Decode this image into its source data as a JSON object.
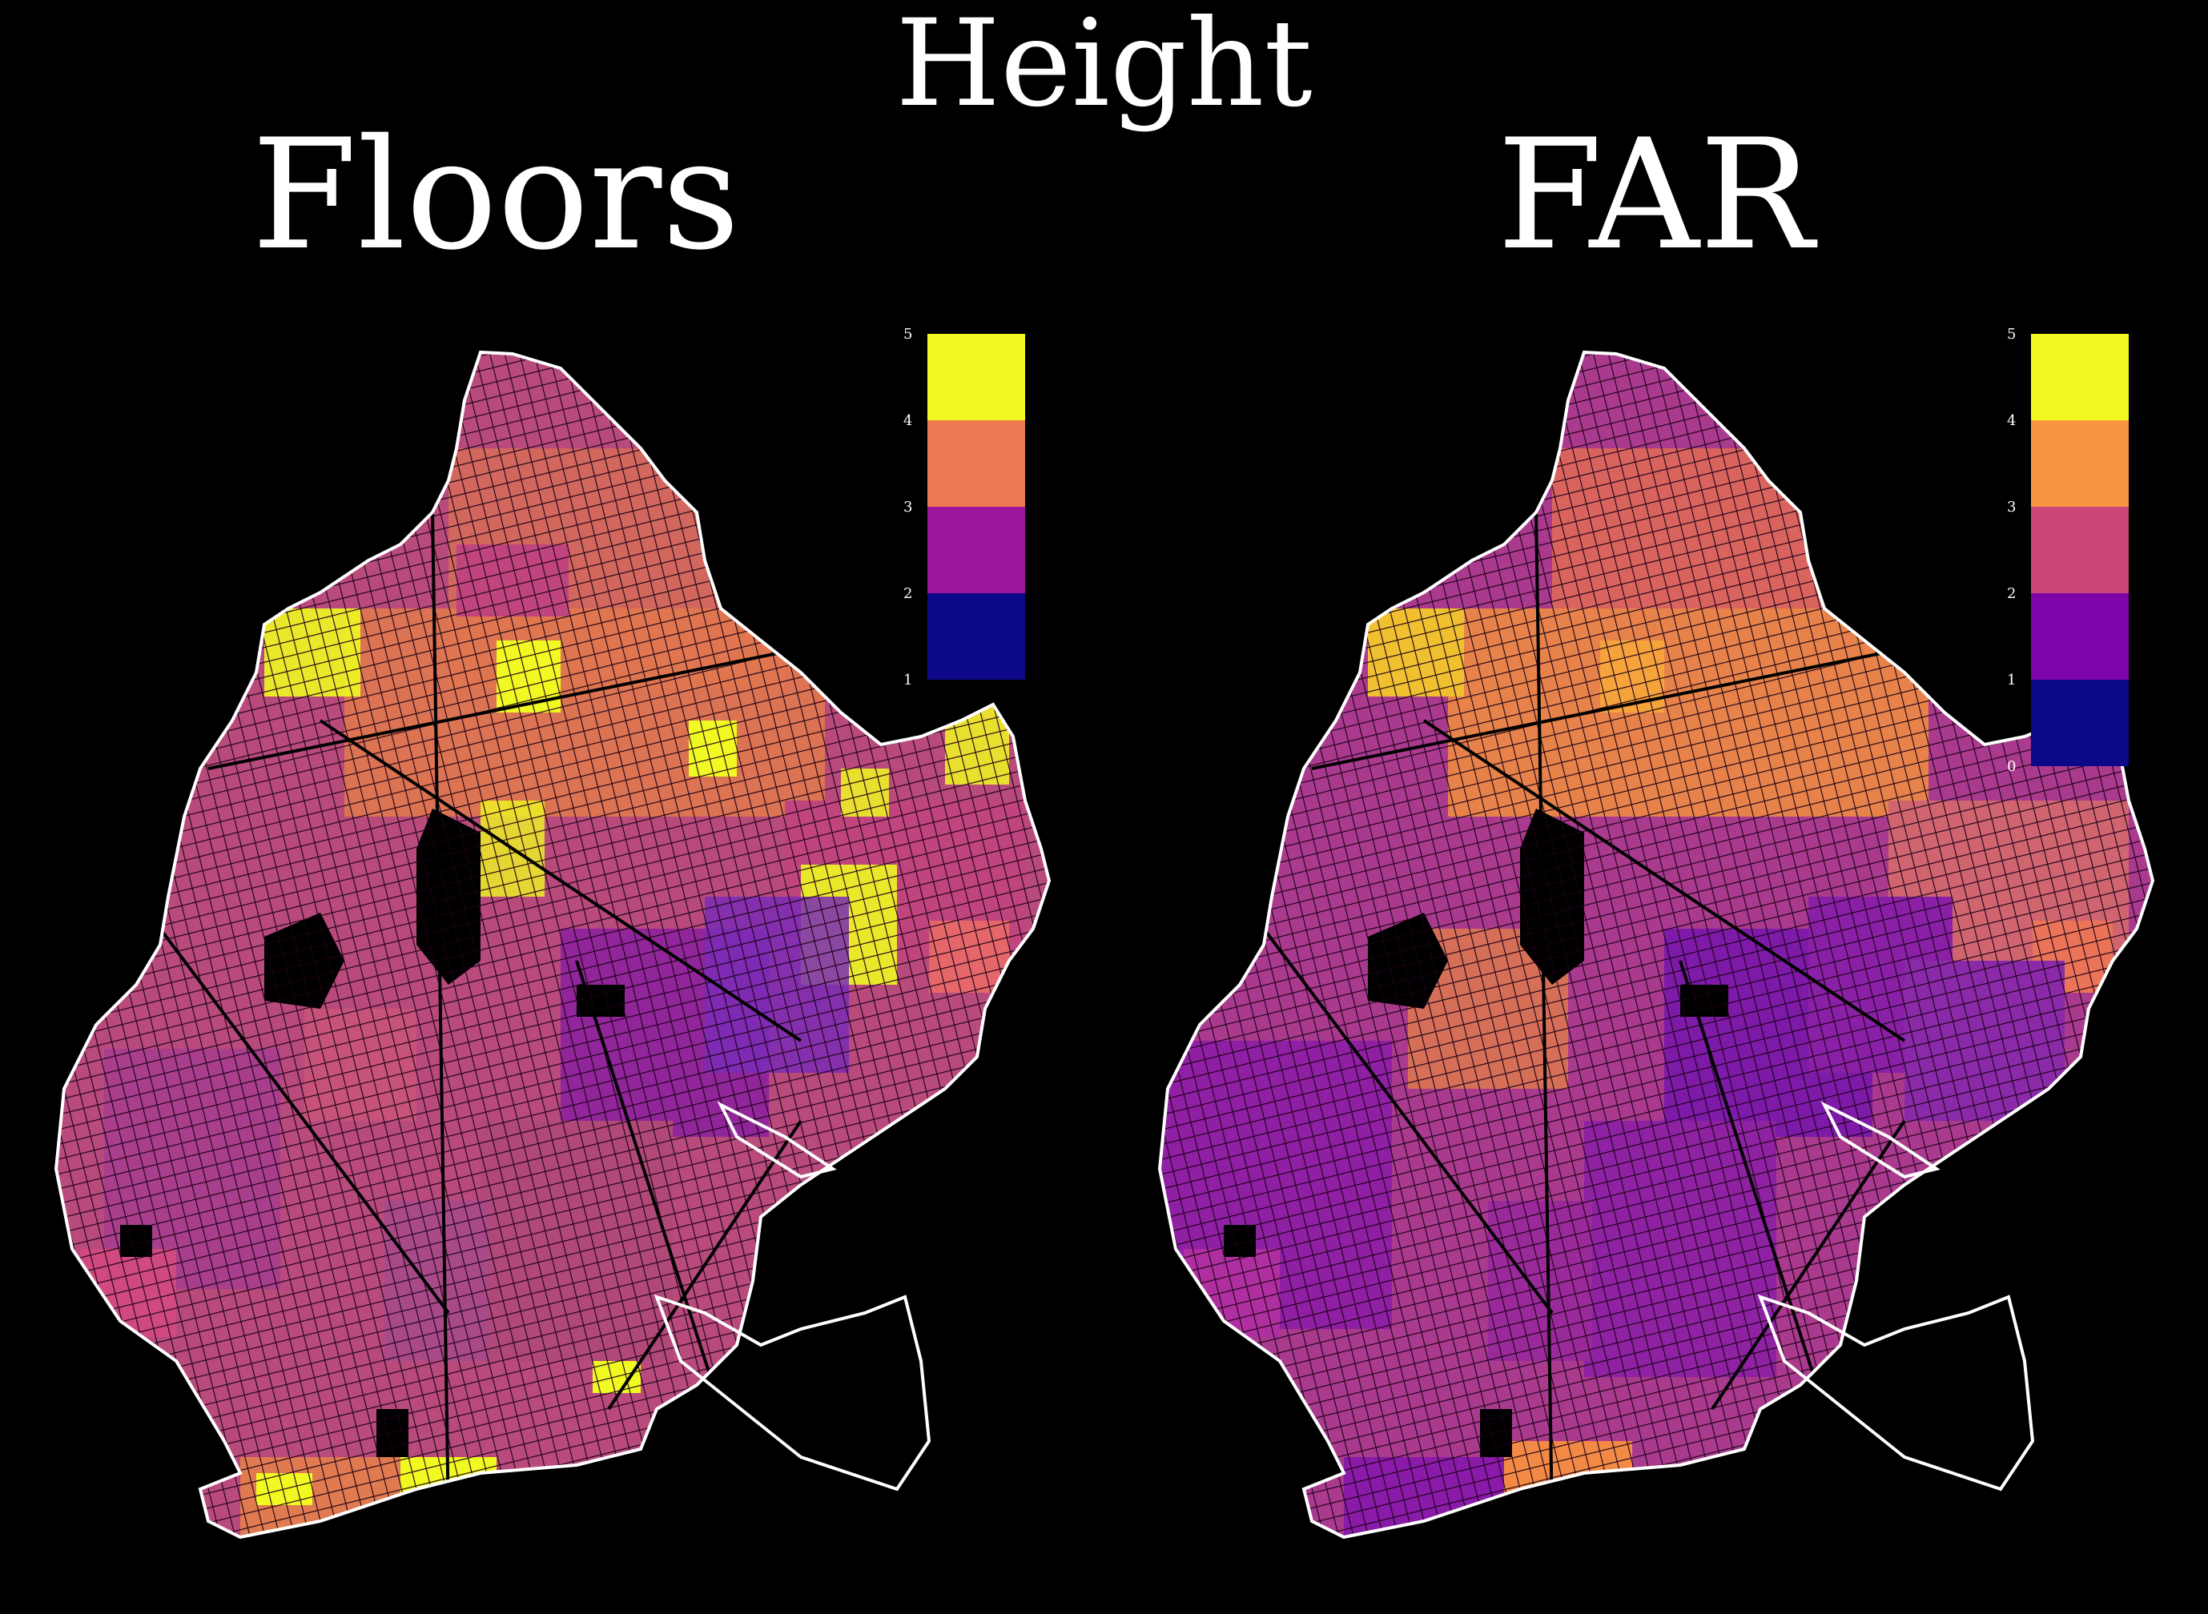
{
  "title": "Height",
  "colors": {
    "background": "#000000",
    "outline": "#ffffff"
  },
  "panels": [
    {
      "label": "Floors",
      "legend": {
        "ticks": [
          "5",
          "4",
          "3",
          "2",
          "1"
        ],
        "bins": [
          {
            "range": "4–5",
            "color": "#f0f921"
          },
          {
            "range": "3–4",
            "color": "#ed7953"
          },
          {
            "range": "2–3",
            "color": "#9c179e"
          },
          {
            "range": "1–2",
            "color": "#0d0887"
          }
        ]
      }
    },
    {
      "label": "FAR",
      "legend": {
        "ticks": [
          "5",
          "4",
          "3",
          "2",
          "1",
          "0"
        ],
        "bins": [
          {
            "range": "4–5",
            "color": "#f0f921"
          },
          {
            "range": "3–4",
            "color": "#f89540"
          },
          {
            "range": "2–3",
            "color": "#cc4778"
          },
          {
            "range": "1–2",
            "color": "#7e03a8"
          },
          {
            "range": "0–1",
            "color": "#0d0887"
          }
        ]
      }
    }
  ]
}
